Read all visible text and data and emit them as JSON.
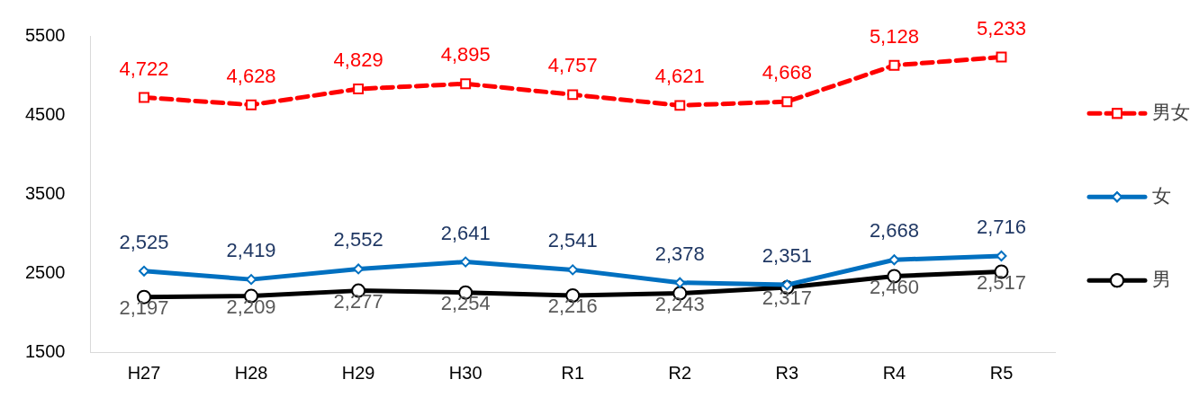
{
  "chart_data": {
    "type": "line",
    "categories": [
      "H27",
      "H28",
      "H29",
      "H30",
      "R1",
      "R2",
      "R3",
      "R4",
      "R5"
    ],
    "series": [
      {
        "name": "男女",
        "color": "#ff0000",
        "line_style": "dashed",
        "marker": "square",
        "values": [
          4722,
          4628,
          4829,
          4895,
          4757,
          4621,
          4668,
          5128,
          5233
        ],
        "value_labels": [
          "4,722",
          "4,628",
          "4,829",
          "4,895",
          "4,757",
          "4,621",
          "4,668",
          "5,128",
          "5,233"
        ]
      },
      {
        "name": "女",
        "color": "#0070c0",
        "line_style": "solid",
        "marker": "diamond",
        "values": [
          2525,
          2419,
          2552,
          2641,
          2541,
          2378,
          2351,
          2668,
          2716
        ],
        "value_labels": [
          "2,525",
          "2,419",
          "2,552",
          "2,641",
          "2,541",
          "2,378",
          "2,351",
          "2,668",
          "2,716"
        ]
      },
      {
        "name": "男",
        "color": "#000000",
        "line_style": "solid",
        "marker": "circle",
        "values": [
          2197,
          2209,
          2277,
          2254,
          2216,
          2243,
          2317,
          2460,
          2517
        ],
        "value_labels": [
          "2,197",
          "2,209",
          "2,277",
          "2,254",
          "2,216",
          "2,243",
          "2,317",
          "2,460",
          "2,517"
        ]
      }
    ],
    "ylim": [
      1500,
      5500
    ],
    "yticks": [
      1500,
      2500,
      3500,
      4500,
      5500
    ],
    "legend": "right"
  }
}
